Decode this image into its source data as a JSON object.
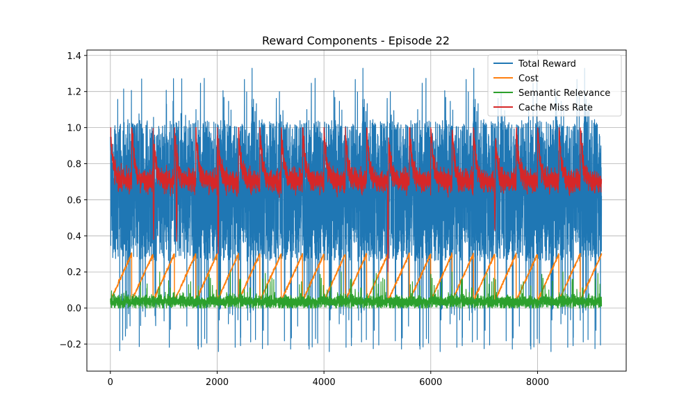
{
  "chart_data": {
    "type": "line",
    "title": "Reward Components - Episode 22",
    "xlabel": "",
    "ylabel": "",
    "xlim": [
      -440,
      9660
    ],
    "ylim": [
      -0.35,
      1.43
    ],
    "grid": true,
    "legend_position": "top-right",
    "x_ticks": [
      0,
      2000,
      4000,
      6000,
      8000
    ],
    "y_ticks": [
      -0.2,
      0.0,
      0.2,
      0.4,
      0.6,
      0.8,
      1.0,
      1.2,
      1.4
    ],
    "x_tick_labels": [
      "0",
      "2000",
      "4000",
      "6000",
      "8000"
    ],
    "y_tick_labels": [
      "−0.2",
      "0.0",
      "0.2",
      "0.4",
      "0.6",
      "0.8",
      "1.0",
      "1.2",
      "1.4"
    ],
    "n_points": 9200,
    "series": [
      {
        "name": "Total Reward",
        "color": "#1f77b4",
        "description": "highly noisy, mostly between 0.25 and 1.05, spikes up to ~1.35 and down to ~-0.27",
        "band": [
          0.25,
          1.05
        ],
        "extremes": [
          -0.27,
          1.35
        ]
      },
      {
        "name": "Cost",
        "color": "#ff7f0e",
        "pattern": "sawtooth",
        "period": 400,
        "values_per_cycle": [
          0.04,
          0.3
        ],
        "reset_x": [
          400,
          800,
          1200,
          1600,
          2000,
          2400,
          2800,
          3200,
          3600,
          4000,
          4400,
          4800,
          5200,
          5600,
          6000,
          6400,
          6800,
          7200,
          7600,
          8000,
          8400,
          8800
        ]
      },
      {
        "name": "Semantic Relevance",
        "color": "#2ca02c",
        "description": "noisy near zero, mostly 0.0 to 0.08, spikes up to ~0.2",
        "band": [
          0.0,
          0.08
        ],
        "extremes": [
          0.0,
          0.2
        ]
      },
      {
        "name": "Cache Miss Rate",
        "color": "#d62728",
        "description": "starts near 1.0 after each reset every 400 steps, decays to ~0.7 with noise; occasional dips to ~0.3",
        "baseline": 0.7,
        "peak_after_reset": 1.0,
        "dips": [
          [
            810,
            0.38
          ],
          [
            1240,
            0.37
          ],
          [
            2020,
            0.3
          ],
          [
            5200,
            0.2
          ],
          [
            7200,
            0.43
          ]
        ]
      }
    ]
  }
}
